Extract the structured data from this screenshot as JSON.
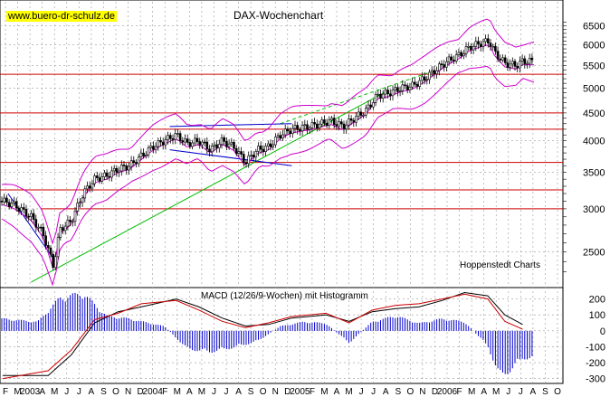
{
  "header": {
    "source": "www.buero-dr-schulz.de",
    "title": "DAX-Wochenchart",
    "credit": "Hoppenstedt Charts",
    "macd_label": "MACD (12/26/9-Wochen) mit Histogramm"
  },
  "chart_data": [
    {
      "type": "candlestick",
      "title": "DAX-Wochenchart",
      "scale": "log",
      "y_ticks": [
        2500,
        3000,
        3500,
        4000,
        4500,
        5000,
        5500,
        6000,
        6500
      ],
      "ylim": [
        2150,
        6850
      ],
      "grid": true,
      "horizontal_levels": [
        3000,
        3250,
        3650,
        4200,
        4500,
        5300
      ],
      "bollinger_bands": true,
      "x_labels": [
        "F",
        "M",
        "2003",
        "A",
        "M",
        "J",
        "J",
        "A",
        "S",
        "O",
        "N",
        "D",
        "2004",
        "F",
        "M",
        "A",
        "M",
        "J",
        "J",
        "A",
        "S",
        "O",
        "N",
        "D",
        "2005",
        "F",
        "M",
        "A",
        "M",
        "J",
        "J",
        "A",
        "S",
        "O",
        "N",
        "D",
        "2006",
        "F",
        "M",
        "A",
        "M",
        "J",
        "J",
        "A",
        "S",
        "O"
      ],
      "colors": {
        "candles": "#000000",
        "bands": "#cc00cc",
        "levels": "#cc0000",
        "trend_green": "#00bb00",
        "trend_blue": "#0000cc",
        "grid": "#999999"
      },
      "close_series": {
        "name": "DAX",
        "points": [
          [
            "2002-11-01",
            3100
          ],
          [
            "2002-12-01",
            3050
          ],
          [
            "2003-01-15",
            2900
          ],
          [
            "2003-02-15",
            2700
          ],
          [
            "2003-03-15",
            2350
          ],
          [
            "2003-04-01",
            2750
          ],
          [
            "2003-05-01",
            2850
          ],
          [
            "2003-06-01",
            3200
          ],
          [
            "2003-07-01",
            3400
          ],
          [
            "2003-08-01",
            3450
          ],
          [
            "2003-09-01",
            3550
          ],
          [
            "2003-10-01",
            3600
          ],
          [
            "2003-11-01",
            3750
          ],
          [
            "2003-12-01",
            3900
          ],
          [
            "2004-01-15",
            4050
          ],
          [
            "2004-02-01",
            4100
          ],
          [
            "2004-03-01",
            3950
          ],
          [
            "2004-04-01",
            4000
          ],
          [
            "2004-05-01",
            3850
          ],
          [
            "2004-06-01",
            4000
          ],
          [
            "2004-07-01",
            3900
          ],
          [
            "2004-08-01",
            3650
          ],
          [
            "2004-09-01",
            3850
          ],
          [
            "2004-10-01",
            3900
          ],
          [
            "2004-11-01",
            4100
          ],
          [
            "2004-12-01",
            4200
          ],
          [
            "2005-01-15",
            4250
          ],
          [
            "2005-02-15",
            4300
          ],
          [
            "2005-03-15",
            4350
          ],
          [
            "2005-04-15",
            4250
          ],
          [
            "2005-05-15",
            4400
          ],
          [
            "2005-06-15",
            4550
          ],
          [
            "2005-07-15",
            4850
          ],
          [
            "2005-08-15",
            4900
          ],
          [
            "2005-09-15",
            5000
          ],
          [
            "2005-10-15",
            5050
          ],
          [
            "2005-11-15",
            5200
          ],
          [
            "2005-12-15",
            5400
          ],
          [
            "2006-01-15",
            5600
          ],
          [
            "2006-02-15",
            5750
          ],
          [
            "2006-03-15",
            5950
          ],
          [
            "2006-04-15",
            6050
          ],
          [
            "2006-05-05",
            6100
          ],
          [
            "2006-05-20",
            5800
          ],
          [
            "2006-06-15",
            5550
          ],
          [
            "2006-07-15",
            5500
          ],
          [
            "2006-08-01",
            5600
          ]
        ]
      }
    },
    {
      "type": "line",
      "title": "MACD (12/26/9-Wochen) mit Histogramm",
      "y_ticks": [
        -300,
        -200,
        -100,
        0,
        100,
        200
      ],
      "ylim": [
        -330,
        260
      ],
      "series": [
        {
          "points": [
            [
              "2002-11-01",
              -280
            ],
            [
              "2003-03-01",
              -280
            ],
            [
              "2003-05-01",
              -150
            ],
            [
              "2003-07-01",
              50
            ],
            [
              "2003-09-01",
              120
            ],
            [
              "2003-11-01",
              150
            ],
            [
              "2004-02-01",
              200
            ],
            [
              "2004-04-01",
              150
            ],
            [
              "2004-06-01",
              80
            ],
            [
              "2004-08-01",
              30
            ],
            [
              "2004-10-01",
              40
            ],
            [
              "2004-12-01",
              80
            ],
            [
              "2005-03-01",
              100
            ],
            [
              "2005-05-01",
              60
            ],
            [
              "2005-07-01",
              120
            ],
            [
              "2005-09-01",
              140
            ],
            [
              "2005-11-01",
              150
            ],
            [
              "2006-01-01",
              190
            ],
            [
              "2006-03-01",
              240
            ],
            [
              "2006-05-01",
              220
            ],
            [
              "2006-06-15",
              100
            ],
            [
              "2006-08-01",
              40
            ]
          ],
          "color": "#000000"
        },
        {
          "points": [
            [
              "2002-11-01",
              -300
            ],
            [
              "2003-03-01",
              -250
            ],
            [
              "2003-05-01",
              -120
            ],
            [
              "2003-07-01",
              70
            ],
            [
              "2003-09-01",
              110
            ],
            [
              "2003-11-01",
              170
            ],
            [
              "2004-02-01",
              190
            ],
            [
              "2004-04-01",
              130
            ],
            [
              "2004-06-01",
              60
            ],
            [
              "2004-08-01",
              20
            ],
            [
              "2004-10-01",
              50
            ],
            [
              "2004-12-01",
              90
            ],
            [
              "2005-03-01",
              110
            ],
            [
              "2005-05-01",
              50
            ],
            [
              "2005-07-01",
              130
            ],
            [
              "2005-09-01",
              160
            ],
            [
              "2005-11-01",
              170
            ],
            [
              "2006-01-01",
              200
            ],
            [
              "2006-03-01",
              230
            ],
            [
              "2006-05-01",
              200
            ],
            [
              "2006-06-15",
              60
            ],
            [
              "2006-08-01",
              10
            ]
          ],
          "color": "#cc0000"
        }
      ],
      "histogram": {
        "color": "#0000cc",
        "points": [
          [
            "2002-11-01",
            80
          ],
          [
            "2003-02-01",
            60
          ],
          [
            "2003-04-01",
            220
          ],
          [
            "2003-06-01",
            250
          ],
          [
            "2003-08-01",
            100
          ],
          [
            "2003-10-01",
            80
          ],
          [
            "2004-01-01",
            30
          ],
          [
            "2004-03-01",
            -120
          ],
          [
            "2004-05-01",
            -140
          ],
          [
            "2004-07-01",
            -110
          ],
          [
            "2004-09-01",
            -70
          ],
          [
            "2004-11-01",
            30
          ],
          [
            "2005-01-01",
            60
          ],
          [
            "2005-03-01",
            50
          ],
          [
            "2005-05-01",
            -80
          ],
          [
            "2005-07-01",
            60
          ],
          [
            "2005-09-01",
            100
          ],
          [
            "2005-11-01",
            50
          ],
          [
            "2006-01-01",
            80
          ],
          [
            "2006-03-01",
            60
          ],
          [
            "2006-05-01",
            -100
          ],
          [
            "2006-06-01",
            -300
          ],
          [
            "2006-07-01",
            -260
          ],
          [
            "2006-08-01",
            -180
          ]
        ]
      }
    }
  ]
}
